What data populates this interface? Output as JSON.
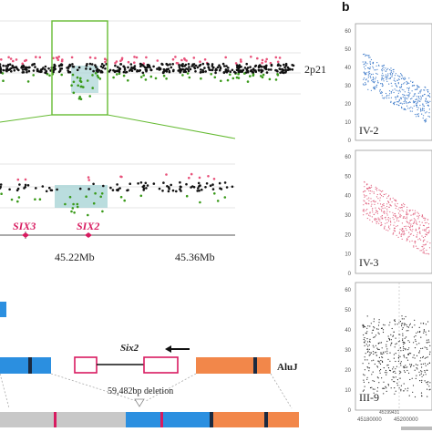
{
  "panel_b_label": "b",
  "top_panel": {
    "band_label": "2p21",
    "zoom_axis": {
      "labels": [
        "45.22Mb",
        "45.36Mb"
      ],
      "genes": [
        "SIX3",
        "SIX2"
      ]
    }
  },
  "gene_diagram": {
    "gene_label": "Six2",
    "alu_label": "AluJ",
    "deletion_label": "59,482bp deletion"
  },
  "panel_b": {
    "subplots": [
      {
        "label": "IV-2",
        "color": "#3a78c8",
        "y_ticks": [
          "60",
          "50",
          "40",
          "30",
          "20",
          "10",
          "0"
        ]
      },
      {
        "label": "IV-3",
        "color": "#e0607e",
        "y_ticks": [
          "60",
          "50",
          "40",
          "30",
          "20",
          "10",
          "0"
        ]
      },
      {
        "label": "III-9",
        "color": "#222222",
        "y_ticks": [
          "60",
          "50",
          "40",
          "30",
          "20",
          "10",
          "0"
        ]
      }
    ],
    "x_ticks": [
      "45180000",
      "45200000"
    ],
    "marker_label": "45199431"
  },
  "colors": {
    "zoom_box": "#66bb33",
    "red_dot": "#e8527a",
    "green_dot": "#3a9a1a",
    "black_dot": "#111111",
    "highlight": "#a9d4d6",
    "blue_segment": "#2b8fe0",
    "orange_segment": "#f2874a",
    "grey_segment": "#c8c8c8",
    "gene_box": "#d81b60"
  }
}
